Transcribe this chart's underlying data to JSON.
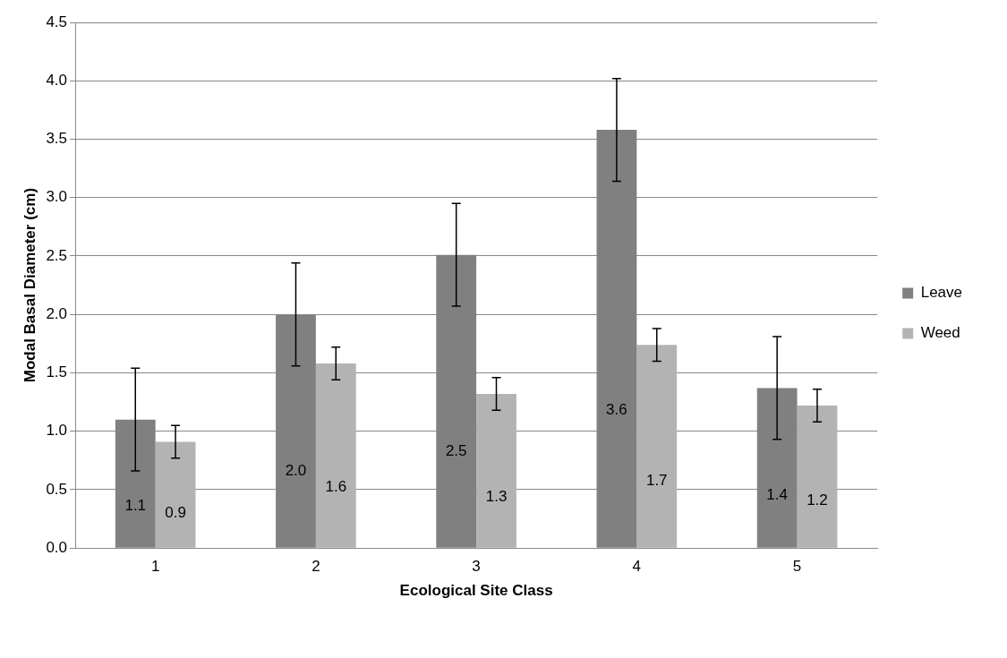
{
  "chart_data": {
    "type": "bar",
    "xlabel": "Ecological Site Class",
    "ylabel": "Modal Basal Diameter (cm)",
    "categories": [
      "1",
      "2",
      "3",
      "4",
      "5"
    ],
    "series": [
      {
        "name": "Leave",
        "color": "#808080",
        "values": [
          1.1,
          2.0,
          2.51,
          3.58,
          1.37
        ],
        "errors": [
          0.44,
          0.44,
          0.44,
          0.44,
          0.44
        ],
        "value_labels": [
          "1.1",
          "2.0",
          "2.5",
          "3.6",
          "1.4"
        ]
      },
      {
        "name": "Weed",
        "color": "#b3b3b3",
        "values": [
          0.91,
          1.58,
          1.32,
          1.74,
          1.22
        ],
        "errors": [
          0.14,
          0.14,
          0.14,
          0.14,
          0.14
        ],
        "value_labels": [
          "0.9",
          "1.6",
          "1.3",
          "1.7",
          "1.2"
        ]
      }
    ],
    "ylim": [
      0,
      4.5
    ],
    "yticks": [
      {
        "value": 0,
        "label": "0.0"
      },
      {
        "value": 0.5,
        "label": "0.5"
      },
      {
        "value": 1,
        "label": "1.0"
      },
      {
        "value": 1.5,
        "label": "1.5"
      },
      {
        "value": 2,
        "label": "2.0"
      },
      {
        "value": 2.5,
        "label": "2.5"
      },
      {
        "value": 3,
        "label": "3.0"
      },
      {
        "value": 3.5,
        "label": "3.5"
      },
      {
        "value": 4,
        "label": "4.0"
      },
      {
        "value": 4.5,
        "label": "4.5"
      }
    ],
    "grid": "y",
    "legend": "right"
  }
}
